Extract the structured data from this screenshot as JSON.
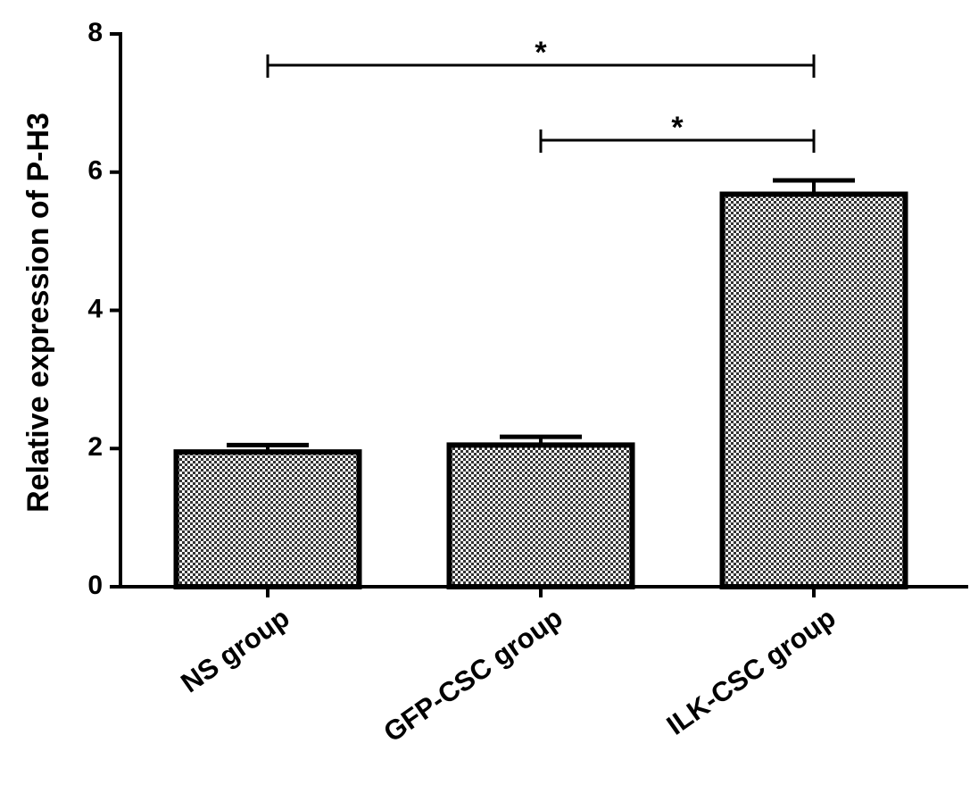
{
  "chart_data": {
    "type": "bar",
    "ylabel": "Relative expression of P-H3",
    "categories": [
      "NS group",
      "GFP-CSC group",
      "ILK-CSC group"
    ],
    "values": [
      1.95,
      2.05,
      5.68
    ],
    "errors": [
      0.1,
      0.12,
      0.2
    ],
    "color": "#333333",
    "ylim": [
      0,
      8
    ],
    "yticks": [
      0,
      2,
      4,
      6,
      8
    ],
    "annotations": [
      {
        "text": "*",
        "between": [
          "NS group",
          "ILK-CSC group"
        ]
      },
      {
        "text": "*",
        "between": [
          "GFP-CSC group",
          "ILK-CSC group"
        ]
      }
    ]
  }
}
